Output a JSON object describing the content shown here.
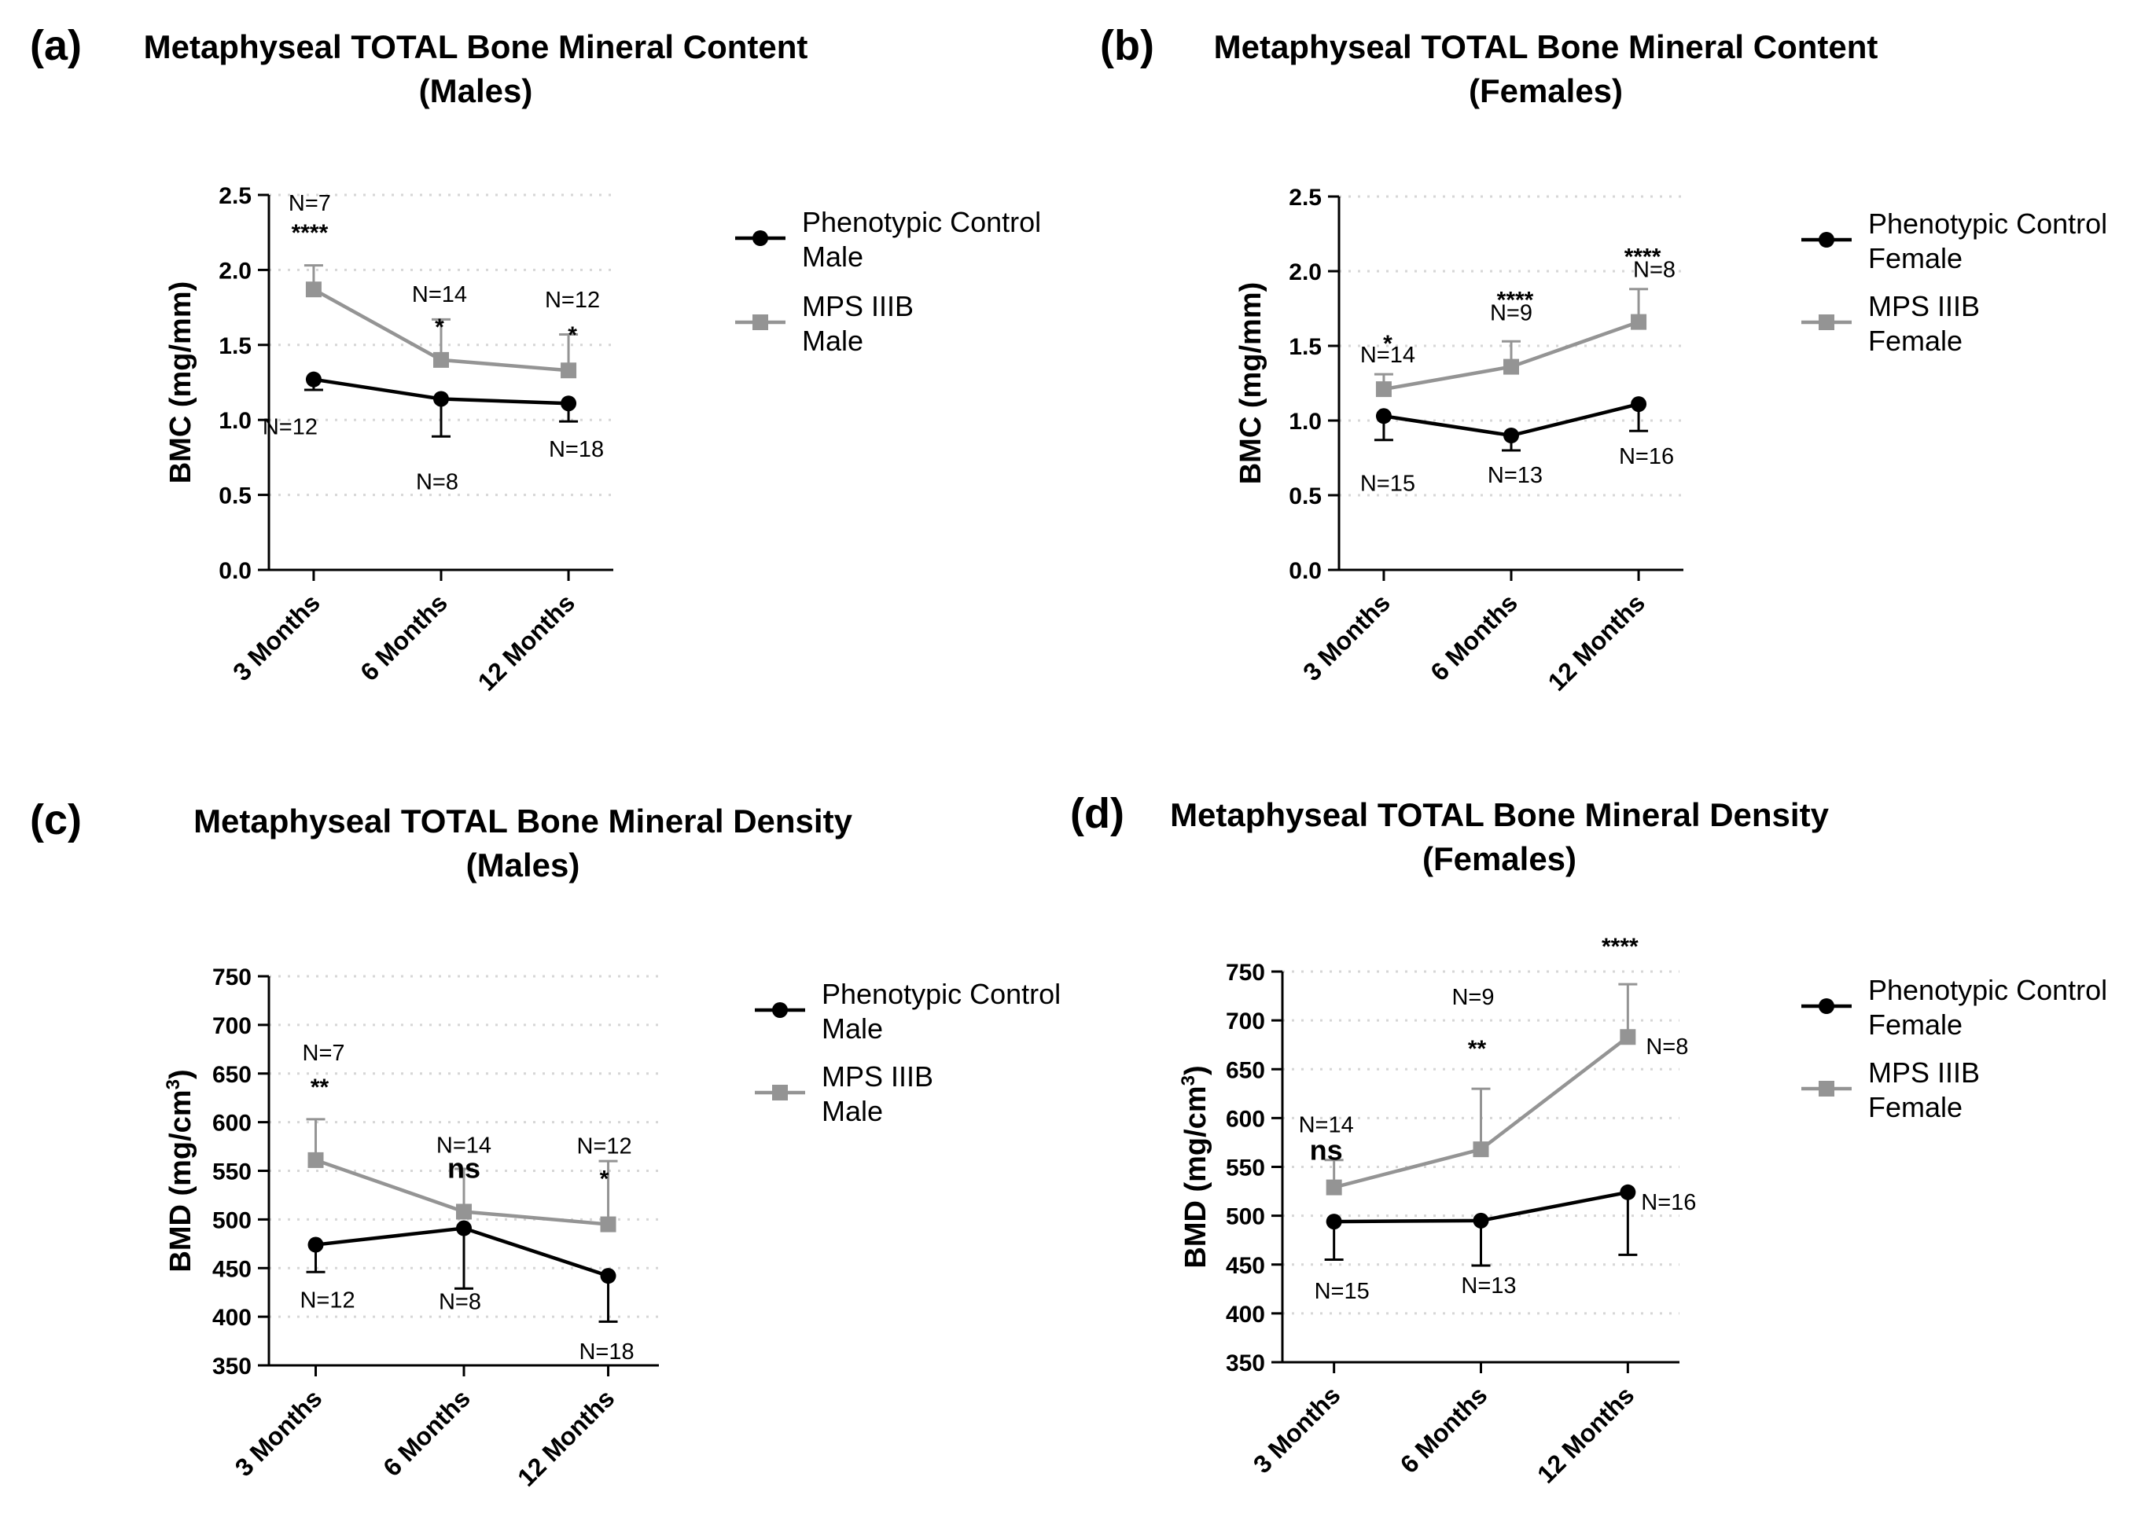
{
  "colors": {
    "control": "#000000",
    "mps": "#949494",
    "axis": "#000000",
    "grid": "#d6d6d6"
  },
  "chart_data": [
    {
      "letter": "(a)",
      "type": "line",
      "title": [
        "Metaphyseal TOTAL Bone Mineral Content",
        "(Males)"
      ],
      "ylabel": "BMC (mg/mm)",
      "ylabel_sup": "",
      "ylim": [
        0,
        2.5
      ],
      "yticks": [
        "0.0",
        "0.5",
        "1.0",
        "1.5",
        "2.0",
        "2.5"
      ],
      "ytick_values": [
        0,
        0.5,
        1.0,
        1.5,
        2.0,
        2.5
      ],
      "categories": [
        "3 Months",
        "6 Months",
        "12 Months"
      ],
      "grid": true,
      "legend_position": "right",
      "series": [
        {
          "name": "Phenotypic Control Male",
          "legend_lines": [
            "Phenotypic Control",
            "Male"
          ],
          "marker": "circle",
          "color": "#000000",
          "values": [
            1.27,
            1.14,
            1.11
          ],
          "err": [
            0.07,
            0.25,
            0.12
          ],
          "err_dir": "down",
          "n_labels": [
            "N=12",
            "N=8",
            "N=18"
          ]
        },
        {
          "name": "MPS IIIB Male",
          "legend_lines": [
            "MPS IIIB",
            "Male"
          ],
          "marker": "square",
          "color": "#949494",
          "values": [
            1.87,
            1.4,
            1.33
          ],
          "err": [
            0.16,
            0.27,
            0.24
          ],
          "err_dir": "up",
          "n_labels": [
            "N=7",
            "N=14",
            "N=12"
          ]
        }
      ],
      "significance": [
        "****",
        "*",
        "*"
      ]
    },
    {
      "letter": "(b)",
      "type": "line",
      "title": [
        "Metaphyseal TOTAL Bone Mineral Content",
        "(Females)"
      ],
      "ylabel": "BMC (mg/mm)",
      "ylabel_sup": "",
      "ylim": [
        0,
        2.5
      ],
      "yticks": [
        "0.0",
        "0.5",
        "1.0",
        "1.5",
        "2.0",
        "2.5"
      ],
      "ytick_values": [
        0,
        0.5,
        1.0,
        1.5,
        2.0,
        2.5
      ],
      "categories": [
        "3 Months",
        "6 Months",
        "12 Months"
      ],
      "grid": true,
      "legend_position": "right",
      "series": [
        {
          "name": "Phenotypic Control Female",
          "legend_lines": [
            "Phenotypic Control",
            "Female"
          ],
          "marker": "circle",
          "color": "#000000",
          "values": [
            1.03,
            0.9,
            1.11
          ],
          "err": [
            0.16,
            0.1,
            0.18
          ],
          "err_dir": "down",
          "n_labels": [
            "N=15",
            "N=13",
            "N=16"
          ]
        },
        {
          "name": "MPS IIIB Female",
          "legend_lines": [
            "MPS IIIB",
            "Female"
          ],
          "marker": "square",
          "color": "#949494",
          "values": [
            1.21,
            1.36,
            1.66
          ],
          "err": [
            0.1,
            0.17,
            0.22
          ],
          "err_dir": "up",
          "n_labels": [
            "N=14",
            "N=9",
            "N=8"
          ]
        }
      ],
      "significance": [
        "*",
        "****",
        "****"
      ]
    },
    {
      "letter": "(c)",
      "type": "line",
      "title": [
        "Metaphyseal TOTAL Bone Mineral Density",
        "(Males)"
      ],
      "ylabel": "BMD (mg/cm",
      "ylabel_sup": "3",
      "ylim": [
        350,
        750
      ],
      "yticks": [
        "350",
        "400",
        "450",
        "500",
        "550",
        "600",
        "650",
        "700",
        "750"
      ],
      "ytick_values": [
        350,
        400,
        450,
        500,
        550,
        600,
        650,
        700,
        750
      ],
      "categories": [
        "3 Months",
        "6 Months",
        "12 Months"
      ],
      "grid": true,
      "legend_position": "right",
      "series": [
        {
          "name": "Phenotypic Control Male",
          "legend_lines": [
            "Phenotypic Control",
            "Male"
          ],
          "marker": "circle",
          "color": "#000000",
          "values": [
            474,
            491,
            442
          ],
          "err": [
            28,
            62,
            47
          ],
          "err_dir": "down",
          "n_labels": [
            "N=12",
            "N=8",
            "N=18"
          ]
        },
        {
          "name": "MPS IIIB Male",
          "legend_lines": [
            "MPS IIIB",
            "Male"
          ],
          "marker": "square",
          "color": "#949494",
          "values": [
            561,
            508,
            495
          ],
          "err": [
            42,
            44,
            65
          ],
          "err_dir": "up",
          "n_labels": [
            "N=7",
            "N=14",
            "N=12"
          ]
        }
      ],
      "significance": [
        "**",
        "ns",
        "*"
      ]
    },
    {
      "letter": "(d)",
      "type": "line",
      "title": [
        "Metaphyseal TOTAL Bone Mineral Density",
        "(Females)"
      ],
      "ylabel": "BMD (mg/cm",
      "ylabel_sup": "3",
      "ylim": [
        350,
        750
      ],
      "yticks": [
        "350",
        "400",
        "450",
        "500",
        "550",
        "600",
        "650",
        "700",
        "750"
      ],
      "ytick_values": [
        350,
        400,
        450,
        500,
        550,
        600,
        650,
        700,
        750
      ],
      "categories": [
        "3 Months",
        "6 Months",
        "12 Months"
      ],
      "grid": true,
      "legend_position": "right",
      "series": [
        {
          "name": "Phenotypic Control Female",
          "legend_lines": [
            "Phenotypic Control",
            "Female"
          ],
          "marker": "circle",
          "color": "#000000",
          "values": [
            494,
            495,
            524
          ],
          "err": [
            39,
            46,
            64
          ],
          "err_dir": "down",
          "n_labels": [
            "N=15",
            "N=13",
            "N=16"
          ]
        },
        {
          "name": "MPS IIIB Female",
          "legend_lines": [
            "MPS IIIB",
            "Female"
          ],
          "marker": "square",
          "color": "#949494",
          "values": [
            529,
            568,
            683
          ],
          "err": [
            28,
            62,
            54
          ],
          "err_dir": "up",
          "n_labels": [
            "N=14",
            "N=9",
            "N=8"
          ]
        }
      ],
      "significance": [
        "ns",
        "**",
        "****"
      ]
    }
  ]
}
